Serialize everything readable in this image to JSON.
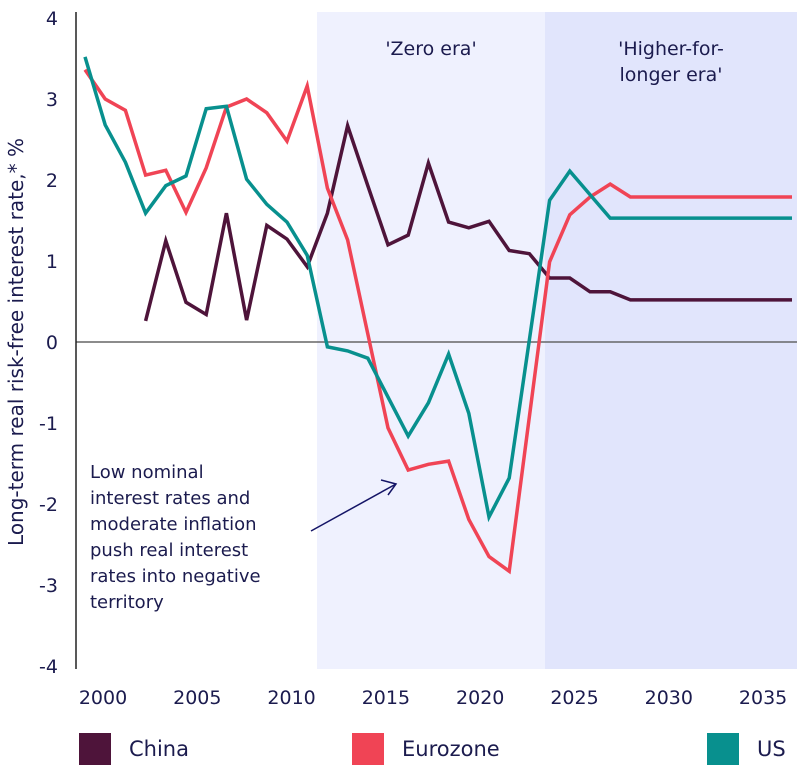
{
  "chart_data": {
    "type": "line",
    "title": "",
    "xlabel": "",
    "ylabel": "Long-term real risk-free interest rate,* %",
    "ylim": [
      -4,
      4
    ],
    "yticks": [
      "4",
      "3",
      "2",
      "1",
      "0",
      "-1",
      "-2",
      "-3",
      "-4"
    ],
    "ytick_values": [
      4,
      3,
      2,
      1,
      0,
      -1,
      -2,
      -3,
      -4
    ],
    "xticks": [
      "2000",
      "2005",
      "2010",
      "2015",
      "2020",
      "2025",
      "2030",
      "2035"
    ],
    "xtick_values": [
      2000,
      2005,
      2010,
      2015,
      2020,
      2025,
      2030,
      2035
    ],
    "x": [
      1999,
      2000,
      2001,
      2002,
      2003,
      2004,
      2005,
      2006,
      2007,
      2008,
      2009,
      2010,
      2011,
      2012,
      2013,
      2014,
      2015,
      2016,
      2017,
      2018,
      2019,
      2020,
      2021,
      2022,
      2023,
      2024,
      2025,
      2026,
      2027,
      2028,
      2029,
      2030,
      2031,
      2032,
      2033,
      2034
    ],
    "series": [
      {
        "name": "China",
        "color": "#4e143a",
        "values": [
          null,
          null,
          null,
          0.26,
          1.25,
          0.49,
          0.34,
          1.59,
          0.27,
          1.44,
          1.27,
          0.93,
          1.59,
          2.67,
          1.93,
          1.2,
          1.32,
          2.21,
          1.48,
          1.41,
          1.49,
          1.13,
          1.09,
          0.79,
          0.79,
          0.62,
          0.62,
          0.52,
          0.52,
          0.52,
          0.52,
          0.52,
          0.52,
          0.52,
          0.52,
          0.52
        ]
      },
      {
        "name": "Eurozone",
        "color": "#f04455",
        "values": [
          3.36,
          3.0,
          2.86,
          2.06,
          2.12,
          1.6,
          2.15,
          2.9,
          3.0,
          2.83,
          2.48,
          3.16,
          1.9,
          1.26,
          0.1,
          -1.06,
          -1.58,
          -1.51,
          -1.47,
          -2.19,
          -2.65,
          -2.83,
          -0.92,
          0.99,
          1.57,
          1.79,
          1.95,
          1.79,
          1.79,
          1.79,
          1.79,
          1.79,
          1.79,
          1.79,
          1.79,
          1.79
        ]
      },
      {
        "name": "US",
        "color": "#08908e",
        "values": [
          3.52,
          2.68,
          2.22,
          1.59,
          1.93,
          2.05,
          2.88,
          2.91,
          2.01,
          1.7,
          1.48,
          1.07,
          -0.06,
          -0.11,
          -0.2,
          -0.68,
          -1.16,
          -0.75,
          -0.15,
          -0.88,
          -2.16,
          -1.68,
          0.03,
          1.75,
          2.11,
          1.82,
          1.53,
          1.53,
          1.53,
          1.53,
          1.53,
          1.53,
          1.53,
          1.53,
          1.53,
          1.53
        ]
      }
    ],
    "shaded_regions": [
      {
        "label": "'Zero era'",
        "label_lines": [
          "'Zero era'"
        ],
        "from": 2010.6,
        "to": 2022.8,
        "color": "#eff1fe"
      },
      {
        "label": "'Higher-for-longer era'",
        "label_lines": [
          "'Higher-for-",
          "longer era'"
        ],
        "from": 2022.8,
        "to": 2035.2,
        "color": "#e1e5fc"
      }
    ],
    "annotation": {
      "lines": [
        "Low nominal",
        "interest rates and",
        "moderate inflation",
        "push real interest",
        "rates into negative",
        "territory"
      ]
    },
    "legend": {
      "placement": "bottom",
      "entries": [
        "China",
        "Eurozone",
        "US"
      ]
    },
    "grid": false
  }
}
